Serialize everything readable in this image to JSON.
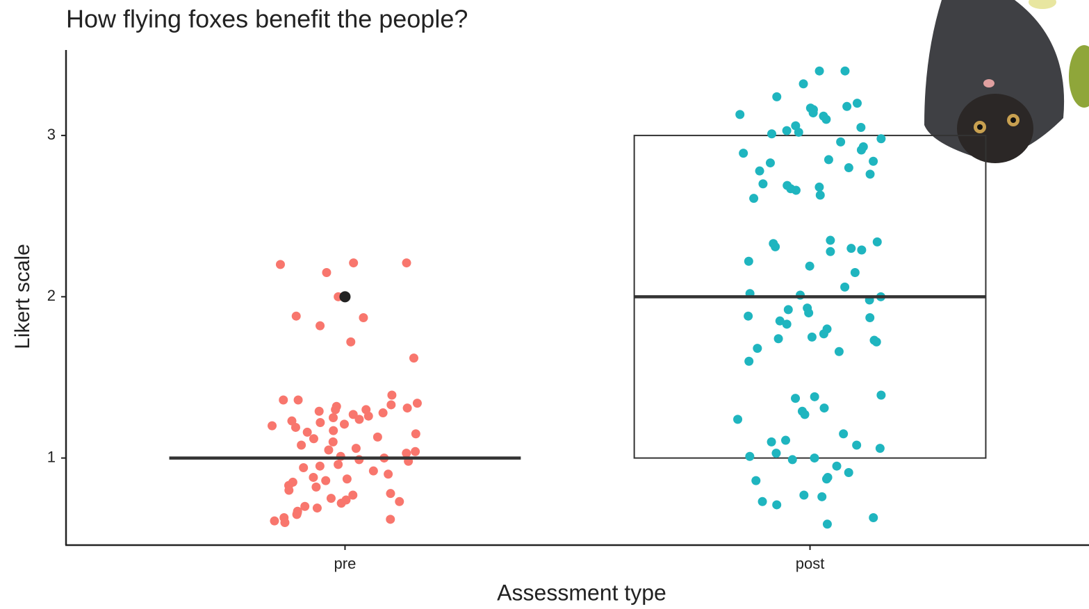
{
  "chart_data": {
    "type": "box",
    "title": "How flying foxes benefit the people?",
    "x_label": "Assessment type",
    "y_label": "Likert scale",
    "categories": [
      "pre",
      "post"
    ],
    "boxes": [
      {
        "min": 1,
        "q1": 1,
        "median": 1,
        "q3": 1,
        "max": 1,
        "outliers": [
          2
        ]
      },
      {
        "min": 1,
        "q1": 1,
        "median": 2,
        "q3": 3,
        "max": 3,
        "outliers": []
      }
    ],
    "series": [
      {
        "color": "#F8766D",
        "values": [
          2.21,
          2.2,
          2.21,
          2.15,
          2.0,
          1.87,
          1.88,
          1.82,
          1.72,
          1.62,
          1.39,
          1.36,
          1.34,
          1.33,
          1.32,
          1.31,
          1.3,
          1.3,
          1.29,
          1.28,
          1.27,
          1.26,
          1.25,
          1.23,
          1.22,
          1.21,
          1.2,
          1.19,
          1.17,
          1.15,
          1.13,
          1.12,
          1.1,
          1.08,
          1.06,
          1.04,
          1.03,
          1.01,
          1.0,
          0.99,
          0.98,
          0.96,
          0.94,
          0.92,
          0.9,
          0.88,
          0.87,
          0.85,
          0.83,
          0.82,
          0.8,
          0.78,
          0.77,
          0.75,
          0.73,
          0.72,
          0.7,
          0.69,
          0.67,
          0.65,
          0.63,
          0.62,
          0.61,
          0.6,
          1.36,
          1.24,
          1.16,
          1.05,
          0.95,
          0.86,
          0.74,
          0.66
        ]
      },
      {
        "color": "#1FB5BF",
        "values": [
          3.4,
          3.4,
          3.32,
          3.24,
          3.2,
          3.18,
          3.17,
          3.16,
          3.14,
          3.13,
          3.12,
          3.1,
          3.06,
          3.05,
          3.03,
          3.02,
          3.01,
          2.98,
          2.96,
          2.93,
          2.91,
          2.89,
          2.85,
          2.84,
          2.83,
          2.8,
          2.78,
          2.76,
          2.7,
          2.69,
          2.68,
          2.67,
          2.66,
          2.63,
          2.61,
          2.35,
          2.34,
          2.33,
          2.31,
          2.3,
          2.29,
          2.28,
          2.22,
          2.19,
          2.15,
          2.06,
          2.02,
          2.01,
          2.0,
          1.98,
          1.93,
          1.92,
          1.9,
          1.88,
          1.87,
          1.85,
          1.83,
          1.8,
          1.77,
          1.75,
          1.74,
          1.73,
          1.72,
          1.68,
          1.66,
          1.6,
          1.39,
          1.38,
          1.37,
          1.31,
          1.29,
          1.27,
          1.24,
          1.15,
          1.11,
          1.1,
          1.08,
          1.06,
          1.03,
          1.01,
          1.0,
          0.99,
          0.95,
          0.91,
          0.88,
          0.87,
          0.86,
          0.77,
          0.76,
          0.73,
          0.71,
          0.63,
          0.59
        ]
      }
    ],
    "box_color": "#333333",
    "outlier_color": "#222222",
    "ylim": [
      0.46,
      3.53
    ],
    "yticks": [
      1,
      2,
      3
    ]
  }
}
